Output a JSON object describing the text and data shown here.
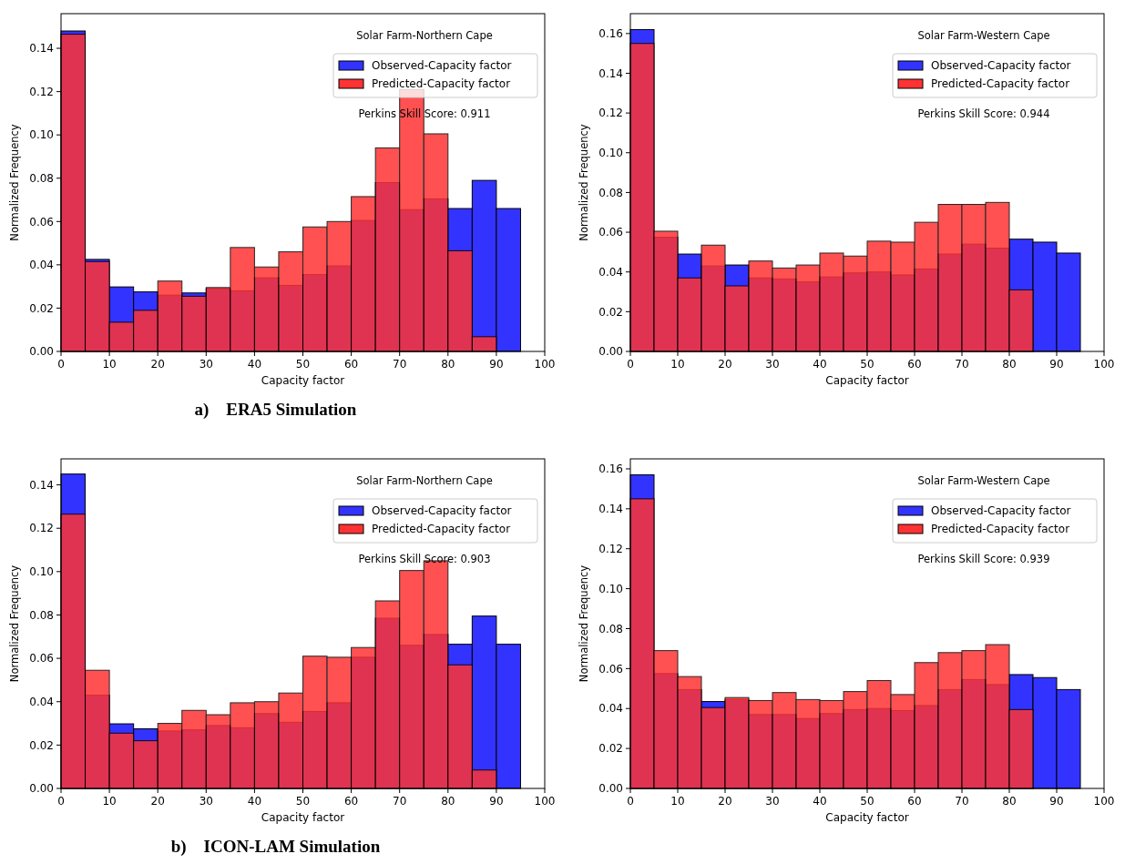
{
  "chart_data": [
    {
      "type": "histogram",
      "title": "Solar Farm-Northern Cape",
      "xlabel": "Capacity factor",
      "ylabel": "Normalized Frequency",
      "annotations": [
        "Perkins Skill Score: 0.911",
        "a)    ERA5 Simulation"
      ],
      "legend": "top right",
      "bins": [
        0,
        5,
        10,
        15,
        20,
        25,
        30,
        35,
        40,
        45,
        50,
        55,
        60,
        65,
        70,
        75,
        80,
        85,
        90,
        95
      ],
      "xlim": [
        0,
        100
      ],
      "xticks": [
        0,
        10,
        20,
        30,
        40,
        50,
        60,
        70,
        80,
        90,
        100
      ],
      "ylim": [
        0,
        0.156
      ],
      "yticks": [
        {
          "value": 0,
          "label": "0.00"
        },
        {
          "value": 0.02,
          "label": "0.02"
        },
        {
          "value": 0.04,
          "label": "0.04"
        },
        {
          "value": 0.06,
          "label": "0.06"
        },
        {
          "value": 0.08,
          "label": "0.08"
        },
        {
          "value": 0.1,
          "label": "0.10"
        },
        {
          "value": 0.12,
          "label": "0.12"
        },
        {
          "value": 0.14,
          "label": "0.14"
        }
      ],
      "series": [
        {
          "name": "Observed-Capacity factor",
          "color": "#3333ff",
          "values": [
            0.148,
            0.0425,
            0.0298,
            0.0275,
            0.026,
            0.027,
            0.029,
            0.028,
            0.034,
            0.0305,
            0.0355,
            0.0395,
            0.0605,
            0.078,
            0.0655,
            0.0705,
            0.066,
            0.079,
            0.066
          ]
        },
        {
          "name": "Predicted-Capacity factor",
          "color": "#ff3333",
          "values": [
            0.1465,
            0.0415,
            0.0135,
            0.019,
            0.0325,
            0.0255,
            0.0295,
            0.048,
            0.039,
            0.046,
            0.0575,
            0.06,
            0.0715,
            0.094,
            0.121,
            0.1005,
            0.0465,
            0.0068,
            null
          ]
        }
      ]
    },
    {
      "type": "histogram",
      "title": "Solar Farm-Western Cape",
      "xlabel": "Capacity factor",
      "ylabel": "Normalized Frequency",
      "annotations": [
        "Perkins Skill Score: 0.944"
      ],
      "legend": "top right",
      "bins": [
        0,
        5,
        10,
        15,
        20,
        25,
        30,
        35,
        40,
        45,
        50,
        55,
        60,
        65,
        70,
        75,
        80,
        85,
        90,
        95
      ],
      "xlim": [
        0,
        100
      ],
      "xticks": [
        0,
        10,
        20,
        30,
        40,
        50,
        60,
        70,
        80,
        90,
        100
      ],
      "ylim": [
        0,
        0.17
      ],
      "yticks": [
        {
          "value": 0,
          "label": "0.00"
        },
        {
          "value": 0.02,
          "label": "0.02"
        },
        {
          "value": 0.04,
          "label": "0.04"
        },
        {
          "value": 0.06,
          "label": "0.06"
        },
        {
          "value": 0.08,
          "label": "0.08"
        },
        {
          "value": 0.1,
          "label": "0.10"
        },
        {
          "value": 0.12,
          "label": "0.12"
        },
        {
          "value": 0.14,
          "label": "0.14"
        },
        {
          "value": 0.16,
          "label": "0.16"
        }
      ],
      "series": [
        {
          "name": "Observed-Capacity factor",
          "color": "#3333ff",
          "values": [
            0.162,
            0.0575,
            0.049,
            0.043,
            0.0435,
            0.037,
            0.0365,
            0.035,
            0.0375,
            0.0395,
            0.04,
            0.0385,
            0.0415,
            0.049,
            0.054,
            0.052,
            0.0565,
            0.055,
            0.0495
          ]
        },
        {
          "name": "Predicted-Capacity factor",
          "color": "#ff3333",
          "values": [
            0.155,
            0.0605,
            0.037,
            0.0535,
            0.033,
            0.0455,
            0.042,
            0.0435,
            0.0495,
            0.048,
            0.0555,
            0.055,
            0.065,
            0.074,
            0.074,
            0.075,
            0.031,
            null,
            null
          ]
        }
      ]
    },
    {
      "type": "histogram",
      "title": "Solar Farm-Northern Cape",
      "xlabel": "Capacity factor",
      "ylabel": "Normalized Frequency",
      "annotations": [
        "Perkins Skill Score: 0.903",
        "b)    ICON-LAM Simulation"
      ],
      "legend": "top right",
      "bins": [
        0,
        5,
        10,
        15,
        20,
        25,
        30,
        35,
        40,
        45,
        50,
        55,
        60,
        65,
        70,
        75,
        80,
        85,
        90,
        95
      ],
      "xlim": [
        0,
        100
      ],
      "xticks": [
        0,
        10,
        20,
        30,
        40,
        50,
        60,
        70,
        80,
        90,
        100
      ],
      "ylim": [
        0,
        0.152
      ],
      "yticks": [
        {
          "value": 0,
          "label": "0.00"
        },
        {
          "value": 0.02,
          "label": "0.02"
        },
        {
          "value": 0.04,
          "label": "0.04"
        },
        {
          "value": 0.06,
          "label": "0.06"
        },
        {
          "value": 0.08,
          "label": "0.08"
        },
        {
          "value": 0.1,
          "label": "0.10"
        },
        {
          "value": 0.12,
          "label": "0.12"
        },
        {
          "value": 0.14,
          "label": "0.14"
        }
      ],
      "series": [
        {
          "name": "Observed-Capacity factor",
          "color": "#3333ff",
          "values": [
            0.145,
            0.043,
            0.0298,
            0.0275,
            0.0265,
            0.027,
            0.029,
            0.028,
            0.0345,
            0.0305,
            0.0355,
            0.0395,
            0.0605,
            0.0785,
            0.066,
            0.071,
            0.0665,
            0.0795,
            0.0665
          ]
        },
        {
          "name": "Predicted-Capacity factor",
          "color": "#ff3333",
          "values": [
            0.1265,
            0.0545,
            0.0255,
            0.022,
            0.03,
            0.036,
            0.034,
            0.0395,
            0.04,
            0.044,
            0.061,
            0.0605,
            0.065,
            0.0865,
            0.1005,
            0.105,
            0.057,
            0.0085,
            null
          ]
        }
      ]
    },
    {
      "type": "histogram",
      "title": "Solar Farm-Western Cape",
      "xlabel": "Capacity factor",
      "ylabel": "Normalized Frequency",
      "annotations": [
        "Perkins Skill Score: 0.939"
      ],
      "legend": "top right",
      "bins": [
        0,
        5,
        10,
        15,
        20,
        25,
        30,
        35,
        40,
        45,
        50,
        55,
        60,
        65,
        70,
        75,
        80,
        85,
        90,
        95
      ],
      "xlim": [
        0,
        100
      ],
      "xticks": [
        0,
        10,
        20,
        30,
        40,
        50,
        60,
        70,
        80,
        90,
        100
      ],
      "ylim": [
        0,
        0.165
      ],
      "yticks": [
        {
          "value": 0,
          "label": "0.00"
        },
        {
          "value": 0.02,
          "label": "0.02"
        },
        {
          "value": 0.04,
          "label": "0.04"
        },
        {
          "value": 0.06,
          "label": "0.06"
        },
        {
          "value": 0.08,
          "label": "0.08"
        },
        {
          "value": 0.1,
          "label": "0.10"
        },
        {
          "value": 0.12,
          "label": "0.12"
        },
        {
          "value": 0.14,
          "label": "0.14"
        },
        {
          "value": 0.16,
          "label": "0.16"
        }
      ],
      "series": [
        {
          "name": "Observed-Capacity factor",
          "color": "#3333ff",
          "values": [
            0.157,
            0.0575,
            0.0495,
            0.0435,
            0.0445,
            0.037,
            0.037,
            0.035,
            0.0375,
            0.0395,
            0.04,
            0.039,
            0.0415,
            0.0495,
            0.0545,
            0.052,
            0.057,
            0.0555,
            0.0495
          ]
        },
        {
          "name": "Predicted-Capacity factor",
          "color": "#ff3333",
          "values": [
            0.145,
            0.069,
            0.056,
            0.0405,
            0.0455,
            0.044,
            0.048,
            0.0445,
            0.044,
            0.0485,
            0.054,
            0.047,
            0.063,
            0.068,
            0.069,
            0.072,
            0.0395,
            null,
            null
          ]
        }
      ]
    }
  ]
}
